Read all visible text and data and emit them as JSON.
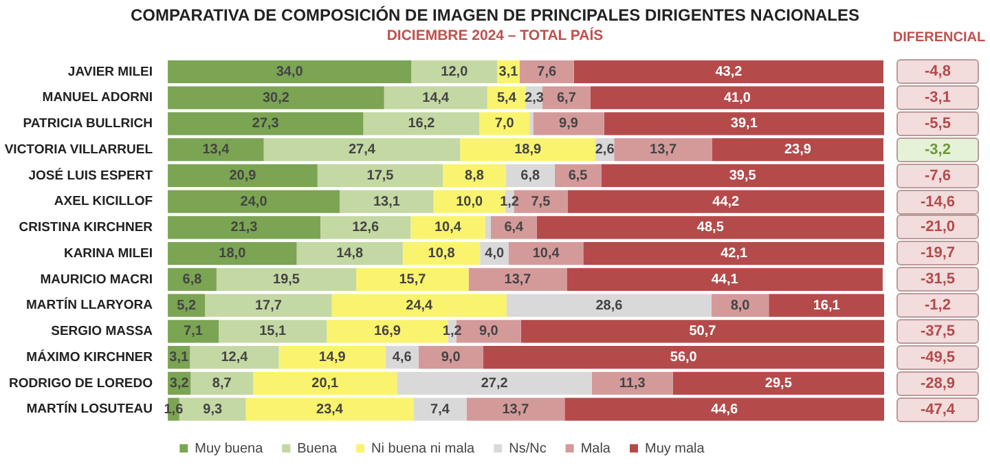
{
  "chart_data": [
    {
      "type": "bar",
      "orientation": "horizontal",
      "stacked": true,
      "title": "COMPARATIVA DE COMPOSICIÓN DE IMAGEN DE PRINCIPALES DIRIGENTES NACIONALES",
      "subtitle": "DICIEMBRE 2024 – TOTAL PAÍS",
      "categories": [
        "JAVIER MILEI",
        "MANUEL ADORNI",
        "PATRICIA BULLRICH",
        "VICTORIA VILLARRUEL",
        "JOSÉ LUIS ESPERT",
        "AXEL KICILLOF",
        "CRISTINA KIRCHNER",
        "KARINA MILEI",
        "MAURICIO MACRI",
        "MARTÍN LLARYORA",
        "SERGIO MASSA",
        "MÁXIMO KIRCHNER",
        "RODRIGO DE LOREDO",
        "MARTÍN LOSUTEAU"
      ],
      "xlim": [
        0,
        100
      ],
      "tick_labels": "y",
      "grid": false,
      "legend": "bottom",
      "series": [
        {
          "name": "Muy buena",
          "color": "#7ba453",
          "values": [
            34.0,
            30.2,
            27.3,
            13.4,
            20.9,
            24.0,
            21.3,
            18.0,
            6.8,
            5.2,
            7.1,
            3.1,
            3.2,
            1.6
          ],
          "value_labels": [
            "34,0",
            "30,2",
            "27,3",
            "13,4",
            "20,9",
            "24,0",
            "21,3",
            "18,0",
            "6,8",
            "5,2",
            "7,1",
            "3,1",
            "3,2",
            "1,6"
          ]
        },
        {
          "name": "Buena",
          "color": "#c4d8a4",
          "values": [
            12.0,
            14.4,
            16.2,
            27.4,
            17.5,
            13.1,
            12.6,
            14.8,
            19.5,
            17.7,
            15.1,
            12.4,
            8.7,
            9.3
          ],
          "value_labels": [
            "12,0",
            "14,4",
            "16,2",
            "27,4",
            "17,5",
            "13,1",
            "12,6",
            "14,8",
            "19,5",
            "17,7",
            "15,1",
            "12,4",
            "8,7",
            "9,3"
          ]
        },
        {
          "name": "Ni buena ni mala",
          "color": "#faf36e",
          "values": [
            3.1,
            5.4,
            7.0,
            18.9,
            8.8,
            10.0,
            10.4,
            10.8,
            15.7,
            24.4,
            16.9,
            14.9,
            20.1,
            23.4
          ],
          "value_labels": [
            "3,1",
            "5,4",
            "7,0",
            "18,9",
            "8,8",
            "10,0",
            "10,4",
            "10,8",
            "15,7",
            "24,4",
            "16,9",
            "14,9",
            "20,1",
            "23,4"
          ]
        },
        {
          "name": "Ns/Nc",
          "color": "#d9d9d9",
          "values": [
            null,
            2.3,
            0.5,
            2.6,
            6.8,
            1.2,
            0.8,
            4.0,
            null,
            28.6,
            1.2,
            4.6,
            27.2,
            7.4
          ],
          "value_labels": [
            null,
            "2,3",
            null,
            "2,6",
            "6,8",
            "1,2",
            null,
            "4,0",
            null,
            "28,6",
            "1,2",
            "4,6",
            "27,2",
            "7,4"
          ]
        },
        {
          "name": "Mala",
          "color": "#d49a9a",
          "values": [
            7.6,
            6.7,
            9.9,
            13.7,
            6.5,
            7.5,
            6.4,
            10.4,
            13.7,
            8.0,
            9.0,
            9.0,
            11.3,
            13.7
          ],
          "value_labels": [
            "7,6",
            "6,7",
            "9,9",
            "13,7",
            "6,5",
            "7,5",
            "6,4",
            "10,4",
            "13,7",
            "8,0",
            "9,0",
            "9,0",
            "11,3",
            "13,7"
          ]
        },
        {
          "name": "Muy mala",
          "color": "#b54a4a",
          "values": [
            43.2,
            41.0,
            39.1,
            23.9,
            39.5,
            44.2,
            48.5,
            42.1,
            44.1,
            16.1,
            50.7,
            56.0,
            29.5,
            44.6
          ],
          "value_labels": [
            "43,2",
            "41,0",
            "39,1",
            "23,9",
            "39,5",
            "44,2",
            "48,5",
            "42,1",
            "44,1",
            "16,1",
            "50,7",
            "56,0",
            "29,5",
            "44,6"
          ]
        }
      ]
    },
    {
      "type": "other",
      "title": "DIFERENCIAL",
      "annotations": [
        "-4,8",
        "-3,1",
        "-5,5",
        "-3,2",
        "-7,6",
        "-14,6",
        "-21,0",
        "-19,7",
        "-31,5",
        "-1,2",
        "-37,5",
        "-49,5",
        "-28,9",
        "-47,4"
      ],
      "colors": [
        "#f2dcdc",
        "#f2dcdc",
        "#f2dcdc",
        "#e6f2d8",
        "#f2dcdc",
        "#f2dcdc",
        "#f2dcdc",
        "#f2dcdc",
        "#f2dcdc",
        "#f2dcdc",
        "#f2dcdc",
        "#f2dcdc",
        "#f2dcdc",
        "#f2dcdc"
      ]
    }
  ]
}
